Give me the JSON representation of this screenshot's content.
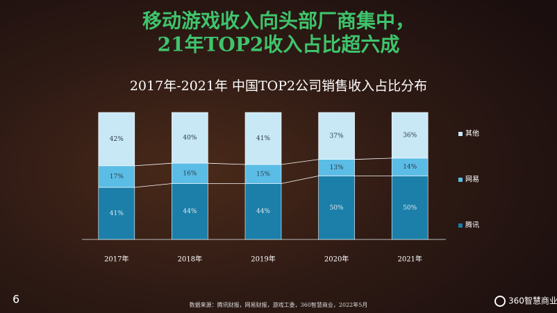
{
  "chart_data": {
    "type": "bar",
    "stacked": true,
    "headline": [
      "移动游戏收入向头部厂商集中，",
      "21年TOP2收入占比超六成"
    ],
    "title": "2017年-2021年 中国TOP2公司销售收入占比分布",
    "categories": [
      "2017年",
      "2018年",
      "2019年",
      "2020年",
      "2021年"
    ],
    "series": [
      {
        "name": "腾讯",
        "color": "#1b7fa9",
        "values": [
          41,
          44,
          44,
          50,
          50
        ],
        "value_labels": [
          "41%",
          "44%",
          "44%",
          "50%",
          "50%"
        ]
      },
      {
        "name": "网易",
        "color": "#5bbde6",
        "values": [
          17,
          16,
          15,
          13,
          14
        ],
        "value_labels": [
          "17%",
          "16%",
          "15%",
          "13%",
          "14%"
        ]
      },
      {
        "name": "其他",
        "color": "#c8e8f6",
        "values": [
          42,
          40,
          41,
          37,
          36
        ],
        "value_labels": [
          "42%",
          "40%",
          "41%",
          "37%",
          "36%"
        ]
      }
    ],
    "ylim": [
      0,
      100
    ],
    "source": "数据来源：腾讯财报，网易财报，游戏工委，360智慧商业，2022年5月",
    "page_number": "6",
    "logo": "360智慧商业"
  }
}
